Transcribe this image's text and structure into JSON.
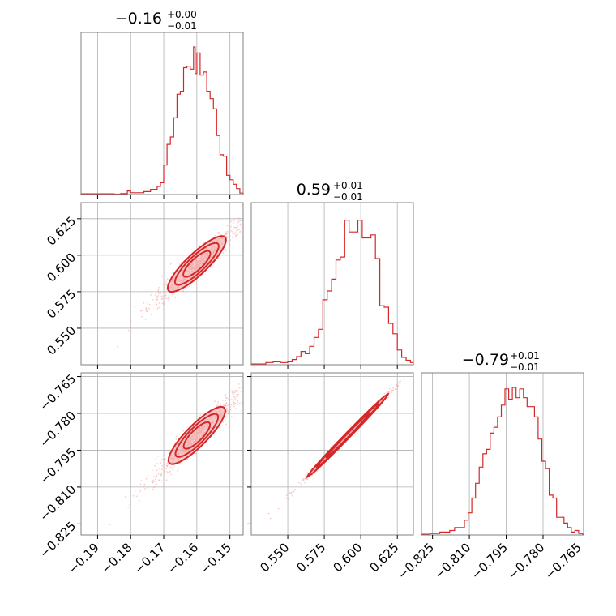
{
  "colors": {
    "accent": "#d62728",
    "accent_light": "#f4a5a5",
    "grid": "#b0b0b0",
    "frame": "#808080"
  },
  "chart_data": {
    "type": "corner",
    "parameters": [
      {
        "title_main": "−0.16",
        "title_plus": "+0.00",
        "title_minus": "−0.01",
        "range": [
          -0.195,
          -0.146
        ],
        "ticks": [
          -0.19,
          -0.18,
          -0.17,
          -0.16,
          -0.15
        ],
        "tick_labels": [
          "−0.19",
          "−0.18",
          "−0.17",
          "−0.16",
          "−0.15"
        ]
      },
      {
        "title_main": "0.59",
        "title_plus": "+0.01",
        "title_minus": "−0.01",
        "range": [
          0.525,
          0.636
        ],
        "ticks": [
          0.55,
          0.575,
          0.6,
          0.625
        ],
        "tick_labels": [
          "0.550",
          "0.575",
          "0.600",
          "0.625"
        ]
      },
      {
        "title_main": "−0.79",
        "title_plus": "+0.01",
        "title_minus": "−0.01",
        "range": [
          -0.8295,
          -0.7635
        ],
        "ticks": [
          -0.825,
          -0.81,
          -0.795,
          -0.78,
          -0.765
        ],
        "tick_labels": [
          "−0.825",
          "−0.810",
          "−0.795",
          "−0.780",
          "−0.765"
        ]
      }
    ],
    "histograms": [
      {
        "parameter": 0,
        "bin_width": 0.001,
        "bins": [
          [
            -0.195,
            0.005
          ],
          [
            -0.19,
            0.005
          ],
          [
            -0.185,
            0.003
          ],
          [
            -0.183,
            0.006
          ],
          [
            -0.181,
            0.024
          ],
          [
            -0.18,
            0.012
          ],
          [
            -0.178,
            0.012
          ],
          [
            -0.176,
            0.02
          ],
          [
            -0.174,
            0.035
          ],
          [
            -0.172,
            0.055
          ],
          [
            -0.171,
            0.08
          ],
          [
            -0.17,
            0.2
          ],
          [
            -0.169,
            0.34
          ],
          [
            -0.168,
            0.39
          ],
          [
            -0.167,
            0.52
          ],
          [
            -0.166,
            0.68
          ],
          [
            -0.165,
            0.7
          ],
          [
            -0.164,
            0.86
          ],
          [
            -0.163,
            0.87
          ],
          [
            -0.162,
            0.85
          ],
          [
            -0.161,
            1.0
          ],
          [
            -0.1605,
            0.82
          ],
          [
            -0.16,
            0.96
          ],
          [
            -0.159,
            0.81
          ],
          [
            -0.158,
            0.83
          ],
          [
            -0.157,
            0.7
          ],
          [
            -0.156,
            0.65
          ],
          [
            -0.155,
            0.58
          ],
          [
            -0.154,
            0.4
          ],
          [
            -0.153,
            0.27
          ],
          [
            -0.152,
            0.26
          ],
          [
            -0.151,
            0.13
          ],
          [
            -0.15,
            0.1
          ],
          [
            -0.149,
            0.07
          ],
          [
            -0.148,
            0.04
          ],
          [
            -0.147,
            0.01
          ],
          [
            -0.146,
            0.005
          ]
        ]
      },
      {
        "parameter": 1,
        "bin_width": 0.0025,
        "bins": [
          [
            0.527,
            0.005
          ],
          [
            0.53,
            0.005
          ],
          [
            0.535,
            0.015
          ],
          [
            0.54,
            0.02
          ],
          [
            0.545,
            0.015
          ],
          [
            0.55,
            0.02
          ],
          [
            0.553,
            0.035
          ],
          [
            0.556,
            0.055
          ],
          [
            0.559,
            0.09
          ],
          [
            0.562,
            0.075
          ],
          [
            0.565,
            0.125
          ],
          [
            0.568,
            0.185
          ],
          [
            0.571,
            0.24
          ],
          [
            0.574,
            0.44
          ],
          [
            0.577,
            0.5
          ],
          [
            0.58,
            0.58
          ],
          [
            0.583,
            0.71
          ],
          [
            0.586,
            0.73
          ],
          [
            0.589,
            0.98
          ],
          [
            0.592,
            0.9
          ],
          [
            0.595,
            0.9
          ],
          [
            0.598,
            0.98
          ],
          [
            0.601,
            0.86
          ],
          [
            0.604,
            0.86
          ],
          [
            0.607,
            0.88
          ],
          [
            0.61,
            0.72
          ],
          [
            0.613,
            0.4
          ],
          [
            0.616,
            0.39
          ],
          [
            0.619,
            0.28
          ],
          [
            0.622,
            0.21
          ],
          [
            0.625,
            0.1
          ],
          [
            0.628,
            0.05
          ],
          [
            0.631,
            0.03
          ],
          [
            0.634,
            0.015
          ]
        ]
      },
      {
        "parameter": 2,
        "bin_width": 0.0015,
        "bins": [
          [
            -0.8295,
            0.005
          ],
          [
            -0.826,
            0.01
          ],
          [
            -0.824,
            0.01
          ],
          [
            -0.822,
            0.02
          ],
          [
            -0.82,
            0.02
          ],
          [
            -0.818,
            0.03
          ],
          [
            -0.816,
            0.05
          ],
          [
            -0.814,
            0.05
          ],
          [
            -0.812,
            0.1
          ],
          [
            -0.8105,
            0.15
          ],
          [
            -0.809,
            0.25
          ],
          [
            -0.8075,
            0.35
          ],
          [
            -0.806,
            0.46
          ],
          [
            -0.8045,
            0.55
          ],
          [
            -0.803,
            0.58
          ],
          [
            -0.8015,
            0.69
          ],
          [
            -0.8,
            0.73
          ],
          [
            -0.7985,
            0.8
          ],
          [
            -0.797,
            0.88
          ],
          [
            -0.7955,
            0.99
          ],
          [
            -0.794,
            0.92
          ],
          [
            -0.7925,
            1.0
          ],
          [
            -0.791,
            0.93
          ],
          [
            -0.7895,
            0.99
          ],
          [
            -0.788,
            0.93
          ],
          [
            -0.7865,
            0.87
          ],
          [
            -0.785,
            0.87
          ],
          [
            -0.7835,
            0.8
          ],
          [
            -0.782,
            0.65
          ],
          [
            -0.7805,
            0.5
          ],
          [
            -0.779,
            0.45
          ],
          [
            -0.7775,
            0.27
          ],
          [
            -0.776,
            0.25
          ],
          [
            -0.7745,
            0.12
          ],
          [
            -0.773,
            0.12
          ],
          [
            -0.7715,
            0.08
          ],
          [
            -0.77,
            0.05
          ],
          [
            -0.7685,
            0.02
          ],
          [
            -0.767,
            0.03
          ],
          [
            -0.7655,
            0.01
          ]
        ]
      }
    ],
    "scatter_panels": [
      {
        "x_parameter": 0,
        "y_parameter": 1,
        "density_axis": {
          "x_range": [
            -0.192,
            -0.147
          ],
          "y_range": [
            0.535,
            0.632
          ],
          "spread": 0.003
        },
        "contour_centers": [
          [
            -0.16,
            0.594
          ]
        ],
        "contour_levels": 3
      },
      {
        "x_parameter": 0,
        "y_parameter": 2,
        "density_axis": {
          "x_range": [
            -0.19,
            -0.146
          ],
          "y_range": [
            -0.824,
            -0.764
          ],
          "spread": 0.0025
        },
        "contour_centers": [
          [
            -0.16,
            -0.789
          ]
        ],
        "contour_levels": 3
      },
      {
        "x_parameter": 1,
        "y_parameter": 2,
        "density_axis": {
          "x_range": [
            0.53,
            0.63
          ],
          "y_range": [
            -0.825,
            -0.764
          ],
          "spread": 0.0006
        },
        "contour_centers": [
          [
            0.591,
            -0.789
          ]
        ],
        "contour_levels": 3
      }
    ],
    "grid": true
  }
}
